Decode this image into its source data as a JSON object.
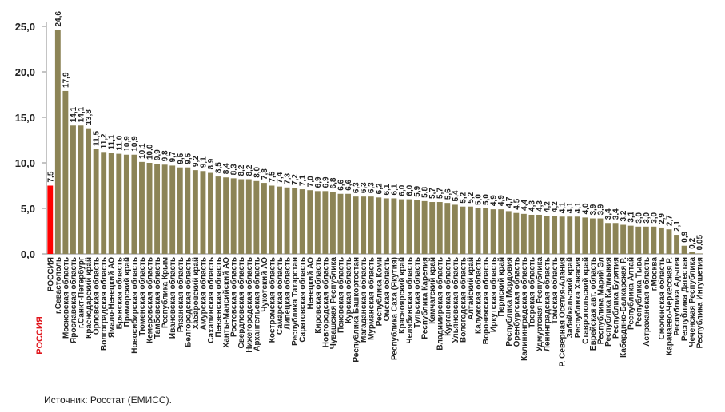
{
  "chart_data": {
    "type": "bar",
    "categories": [
      "РОССИЯ",
      "г.Севастополь",
      "Московская область",
      "Ярославская область",
      "г.Санкт-Петербург",
      "Краснодарский край",
      "Орловская область",
      "Волгоградская область",
      "Ямало-Ненецкий АО",
      "Брянская область",
      "Приморский край",
      "Новосибирская область",
      "Тюменская область",
      "Кемеровская область",
      "Тамбовская область",
      "Республика Крым",
      "Ивановская область",
      "Рязанская область",
      "Белгородская область",
      "Хабаровский край",
      "Амурская область",
      "Сахалинская область",
      "Пензенская область",
      "Ханты-Мансийский АО",
      "Ростовская область",
      "Свердловская область",
      "Нижегородская область",
      "Архангельская область",
      "Чукотский АО",
      "Костромская область",
      "Самарская область",
      "Липецкая область",
      "Республика Татарстан",
      "Саратовская область",
      "Ненецкий АО",
      "Кировская область",
      "Новгородская область",
      "Чувашская Республика",
      "Псковская область",
      "Курская область",
      "Республика Башкортостан",
      "Магаданская область",
      "Мурманская область",
      "Республика Коми",
      "Омская область",
      "Республика Саха (Якутия)",
      "Красноярский край",
      "Челябинская область",
      "Тульская область",
      "Республика Карелия",
      "Камчатский край",
      "Владимирская область",
      "Курганская область",
      "Ульяновская область",
      "Вологодская область",
      "Алтайский край",
      "Калужская область",
      "Воронежская область",
      "Иркутская область",
      "Пермский край",
      "Республика Мордовия",
      "Оренбургская область",
      "Калининградская область",
      "Тверская область",
      "Удмуртская Республика",
      "Ленинградская область",
      "Томская область",
      "Р. Северная Осетия-Алания",
      "Забайкальский край",
      "Республика Хакасия",
      "Ставропольский край",
      "Еврейская авт. область",
      "Республика Марий Эл",
      "Республика Калмыкия",
      "Республика Бурятия",
      "Кабардино-Балкарская Р.",
      "Республика Алтай",
      "Республика Тыва",
      "Астраханская область",
      "г.Москва",
      "Смоленская область",
      "Карачаево-Черкесская Р.",
      "Республика Адыгея",
      "Республика Дагестан",
      "Чеченская Республика",
      "Республика Ингушетия"
    ],
    "values": [
      7.5,
      24.6,
      17.9,
      14.1,
      14.1,
      13.8,
      11.5,
      11.2,
      11.1,
      11.0,
      10.9,
      10.9,
      10.1,
      10.0,
      9.9,
      9.8,
      9.7,
      9.5,
      9.5,
      9.2,
      9.1,
      8.9,
      8.5,
      8.4,
      8.3,
      8.2,
      8.2,
      8.0,
      7.8,
      7.5,
      7.4,
      7.3,
      7.2,
      7.1,
      7.0,
      6.9,
      6.9,
      6.8,
      6.6,
      6.6,
      6.3,
      6.3,
      6.3,
      6.2,
      6.1,
      6.1,
      6.0,
      6.0,
      5.9,
      5.8,
      5.7,
      5.7,
      5.6,
      5.4,
      5.2,
      5.2,
      5.0,
      5.0,
      4.9,
      4.9,
      4.7,
      4.5,
      4.4,
      4.3,
      4.3,
      4.2,
      4.2,
      4.1,
      4.1,
      4.1,
      4.0,
      3.9,
      3.9,
      3.4,
      3.4,
      3.2,
      3.1,
      3.0,
      3.0,
      3.0,
      2.9,
      2.7,
      2.1,
      0.9,
      0.2,
      0.05
    ],
    "value_labels": [
      "7,5",
      "24,6",
      "17,9",
      "14,1",
      "14,1",
      "13,8",
      "11,5",
      "11,2",
      "11,1",
      "11,0",
      "10,9",
      "10,9",
      "10,1",
      "10,0",
      "9,9",
      "9,8",
      "9,7",
      "9,5",
      "9,5",
      "9,2",
      "9,1",
      "8,9",
      "8,5",
      "8,4",
      "8,3",
      "8,2",
      "8,2",
      "8,0",
      "7,8",
      "7,5",
      "7,4",
      "7,3",
      "7,2",
      "7,1",
      "7,0",
      "6,9",
      "6,9",
      "6,8",
      "6,6",
      "6,6",
      "6,3",
      "6,3",
      "6,3",
      "6,2",
      "6,1",
      "6,1",
      "6,0",
      "6,0",
      "5,9",
      "5,8",
      "5,7",
      "5,7",
      "5,6",
      "5,4",
      "5,2",
      "5,2",
      "5,0",
      "5,0",
      "4,9",
      "4,9",
      "4,7",
      "4,5",
      "4,4",
      "4,3",
      "4,3",
      "4,2",
      "4,2",
      "4,1",
      "4,1",
      "4,1",
      "4,0",
      "3,9",
      "3,9",
      "3,4",
      "3,4",
      "3,2",
      "3,1",
      "3,0",
      "3,0",
      "3,0",
      "2,9",
      "2,7",
      "2,1",
      "0,9",
      "0,2",
      "0,05"
    ],
    "color": "#8c8456",
    "highlight_color": "#ff0000",
    "highlight_label": "РОССИЯ",
    "ylim": [
      0,
      25
    ],
    "yticks": [
      {
        "value": 0,
        "label": "0,0"
      },
      {
        "value": 5,
        "label": "5,0"
      },
      {
        "value": 10,
        "label": "10,0"
      },
      {
        "value": 15,
        "label": "15,0"
      },
      {
        "value": 20,
        "label": "20,0"
      },
      {
        "value": 25,
        "label": "25,0"
      }
    ],
    "source": "Источник: Росстат (ЕМИСС)."
  }
}
